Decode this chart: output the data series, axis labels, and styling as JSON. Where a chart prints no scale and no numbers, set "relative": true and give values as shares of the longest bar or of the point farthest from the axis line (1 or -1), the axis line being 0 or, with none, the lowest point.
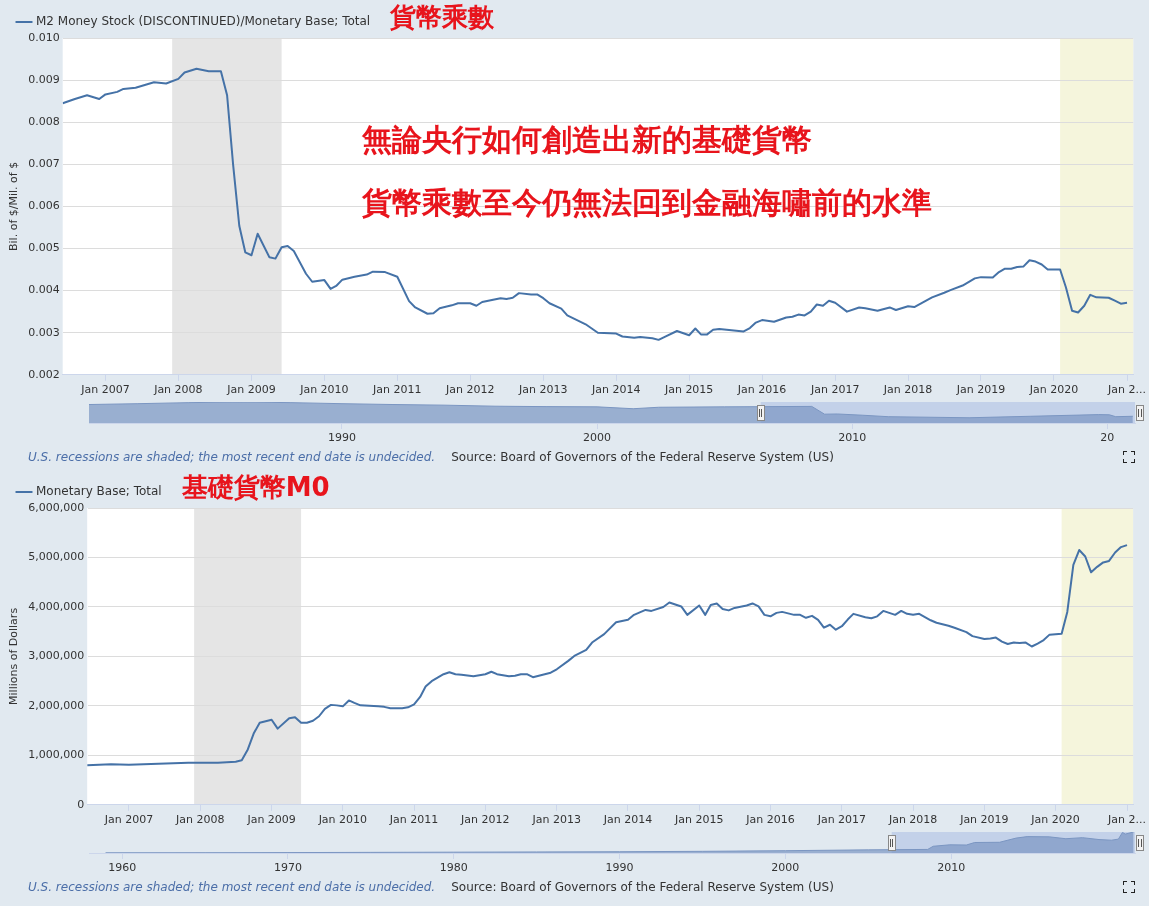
{
  "chart_data": [
    {
      "type": "line",
      "title": "貨幣乘數",
      "ylabel": "Bil. of $/Mil. of $",
      "legend": "top left",
      "grid": "y",
      "xlim": [
        "2006-06",
        "2021-02"
      ],
      "xticks": [
        {
          "value": "2007-01",
          "label": "Jan 2007"
        },
        {
          "value": "2008-01",
          "label": "Jan 2008"
        },
        {
          "value": "2009-01",
          "label": "Jan 2009"
        },
        {
          "value": "2010-01",
          "label": "Jan 2010"
        },
        {
          "value": "2011-01",
          "label": "Jan 2011"
        },
        {
          "value": "2012-01",
          "label": "Jan 2012"
        },
        {
          "value": "2013-01",
          "label": "Jan 2013"
        },
        {
          "value": "2014-01",
          "label": "Jan 2014"
        },
        {
          "value": "2015-01",
          "label": "Jan 2015"
        },
        {
          "value": "2016-01",
          "label": "Jan 2016"
        },
        {
          "value": "2017-01",
          "label": "Jan 2017"
        },
        {
          "value": "2018-01",
          "label": "Jan 2018"
        },
        {
          "value": "2019-01",
          "label": "Jan 2019"
        },
        {
          "value": "2020-01",
          "label": "Jan 2020"
        },
        {
          "value": "2021-01",
          "label": "Jan 2..."
        }
      ],
      "ylim": [
        0.002,
        0.01
      ],
      "yticks": [
        0.002,
        0.003,
        0.004,
        0.005,
        0.006,
        0.007,
        0.008,
        0.009,
        {
          "value": 0.01,
          "label": "0.010"
        }
      ],
      "bands": [
        {
          "axis": "x",
          "from": "2007-12",
          "to": "2009-06",
          "color": "#e5e5e5"
        },
        {
          "axis": "x",
          "from": "2020-02",
          "to": "2021-02",
          "color": "#f5f5dc"
        }
      ],
      "annotations": [
        "無論央行如何創造出新的基礎貨幣",
        "貨幣乘數至今仍無法回到金融海嘯前的水準"
      ],
      "x": [
        "2006-06",
        "2006-08",
        "2006-10",
        "2006-12",
        "2007-01",
        "2007-03",
        "2007-04",
        "2007-06",
        "2007-09",
        "2007-11",
        "2008-01",
        "2008-02",
        "2008-04",
        "2008-06",
        "2008-08",
        "2008-09",
        "2008-10",
        "2008-11",
        "2008-12",
        "2009-01",
        "2009-02",
        "2009-04",
        "2009-05",
        "2009-06",
        "2009-07",
        "2009-08",
        "2009-10",
        "2009-11",
        "2010-01",
        "2010-02",
        "2010-03",
        "2010-04",
        "2010-06",
        "2010-08",
        "2010-09",
        "2010-11",
        "2011-01",
        "2011-03",
        "2011-04",
        "2011-06",
        "2011-07",
        "2011-08",
        "2011-10",
        "2011-11",
        "2012-01",
        "2012-02",
        "2012-03",
        "2012-05",
        "2012-06",
        "2012-07",
        "2012-08",
        "2012-09",
        "2012-11",
        "2012-12",
        "2013-01",
        "2013-02",
        "2013-04",
        "2013-05",
        "2013-08",
        "2013-10",
        "2014-01",
        "2014-02",
        "2014-04",
        "2014-05",
        "2014-07",
        "2014-08",
        "2014-09",
        "2014-11",
        "2015-01",
        "2015-02",
        "2015-03",
        "2015-04",
        "2015-05",
        "2015-06",
        "2015-08",
        "2015-10",
        "2015-11",
        "2015-12",
        "2016-01",
        "2016-03",
        "2016-05",
        "2016-06",
        "2016-07",
        "2016-08",
        "2016-09",
        "2016-10",
        "2016-11",
        "2016-12",
        "2017-01",
        "2017-03",
        "2017-05",
        "2017-06",
        "2017-08",
        "2017-10",
        "2017-11",
        "2018-01",
        "2018-02",
        "2018-05",
        "2018-07",
        "2018-08",
        "2018-10",
        "2018-12",
        "2019-01",
        "2019-03",
        "2019-04",
        "2019-05",
        "2019-06",
        "2019-07",
        "2019-08",
        "2019-09",
        "2019-10",
        "2019-11",
        "2019-12",
        "2020-02",
        "2020-03",
        "2020-04",
        "2020-05",
        "2020-06",
        "2020-07",
        "2020-08",
        "2020-10",
        "2020-11",
        "2020-12",
        "2021-01"
      ],
      "series": [
        {
          "name": "M2 Money Stock (DISCONTINUED)/Monetary Base; Total",
          "color": "#4572a7",
          "values": [
            0.00845,
            0.00855,
            0.00864,
            0.00855,
            0.00866,
            0.00872,
            0.00879,
            0.00882,
            0.00895,
            0.00892,
            0.00903,
            0.00918,
            0.00927,
            0.00921,
            0.00921,
            0.00864,
            0.007,
            0.00554,
            0.00491,
            0.00484,
            0.00535,
            0.00479,
            0.00476,
            0.00503,
            0.00506,
            0.00494,
            0.0044,
            0.00421,
            0.00425,
            0.00404,
            0.00411,
            0.00426,
            0.00433,
            0.00438,
            0.00445,
            0.00444,
            0.00433,
            0.00375,
            0.0036,
            0.00345,
            0.00346,
            0.00358,
            0.00365,
            0.0037,
            0.0037,
            0.00364,
            0.00373,
            0.00379,
            0.00382,
            0.0038,
            0.00383,
            0.00394,
            0.00391,
            0.00391,
            0.00382,
            0.0037,
            0.00357,
            0.00341,
            0.0032,
            0.003,
            0.00298,
            0.00291,
            0.00288,
            0.0029,
            0.00287,
            0.00283,
            0.0029,
            0.00304,
            0.00294,
            0.0031,
            0.00296,
            0.00296,
            0.00307,
            0.00309,
            0.00306,
            0.00303,
            0.00311,
            0.00324,
            0.0033,
            0.00326,
            0.00336,
            0.00338,
            0.00343,
            0.00341,
            0.0035,
            0.00367,
            0.00364,
            0.00376,
            0.00371,
            0.0035,
            0.0036,
            0.00358,
            0.00352,
            0.0036,
            0.00354,
            0.00363,
            0.00361,
            0.00384,
            0.00395,
            0.00401,
            0.00412,
            0.00429,
            0.00432,
            0.00431,
            0.00444,
            0.00452,
            0.00452,
            0.00456,
            0.00457,
            0.00472,
            0.00469,
            0.00462,
            0.0045,
            0.0045,
            0.00408,
            0.00352,
            0.00348,
            0.00364,
            0.0039,
            0.00384,
            0.00383,
            0.00376,
            0.00369,
            0.00371
          ]
        }
      ]
    },
    {
      "type": "area",
      "relative": true,
      "xlim": [
        "1980-02",
        "2021-02"
      ],
      "xticks": [
        {
          "value": "1990-01",
          "label": "1990"
        },
        {
          "value": "2000-01",
          "label": "2000"
        },
        {
          "value": "2010-01",
          "label": "2010"
        },
        {
          "value": "2020-01",
          "label": "20"
        }
      ],
      "bands": [
        {
          "axis": "x",
          "from": "2006-06",
          "to": "2021-02",
          "color": "#c3d1e9"
        }
      ],
      "annotations": [
        "U.S. recessions are shaded; the most recent end date is undecided.",
        "Source: Board of Governors of the Federal Reserve System (US)"
      ],
      "x": [
        "1980-02",
        "1982-01",
        "1984-01",
        "1986-01",
        "1988-01",
        "1990-01",
        "1992-01",
        "1994-01",
        "1996-01",
        "1998-01",
        "2000-01",
        "2001-06",
        "2002-06",
        "2005-01",
        "2008-06",
        "2008-12",
        "2009-06",
        "2010-06",
        "2011-06",
        "2014-08",
        "2017-01",
        "2019-09",
        "2020-02",
        "2020-05",
        "2021-01"
      ],
      "series": [
        {
          "color": "#7b96c2",
          "values": [
            0.88,
            0.92,
            0.97,
            1,
            0.97,
            0.92,
            0.88,
            0.85,
            0.8,
            0.78,
            0.77,
            0.68,
            0.75,
            0.77,
            0.79,
            0.42,
            0.43,
            0.37,
            0.3,
            0.25,
            0.32,
            0.4,
            0.39,
            0.3,
            0.32
          ]
        }
      ]
    },
    {
      "type": "line",
      "title": "基礎貨幣M0",
      "ylabel": "Millions of Dollars",
      "legend": "top left",
      "grid": "y",
      "xlim": [
        "2006-06",
        "2021-02"
      ],
      "xticks": [
        {
          "value": "2007-01",
          "label": "Jan 2007"
        },
        {
          "value": "2008-01",
          "label": "Jan 2008"
        },
        {
          "value": "2009-01",
          "label": "Jan 2009"
        },
        {
          "value": "2010-01",
          "label": "Jan 2010"
        },
        {
          "value": "2011-01",
          "label": "Jan 2011"
        },
        {
          "value": "2012-01",
          "label": "Jan 2012"
        },
        {
          "value": "2013-01",
          "label": "Jan 2013"
        },
        {
          "value": "2014-01",
          "label": "Jan 2014"
        },
        {
          "value": "2015-01",
          "label": "Jan 2015"
        },
        {
          "value": "2016-01",
          "label": "Jan 2016"
        },
        {
          "value": "2017-01",
          "label": "Jan 2017"
        },
        {
          "value": "2018-01",
          "label": "Jan 2018"
        },
        {
          "value": "2019-01",
          "label": "Jan 2019"
        },
        {
          "value": "2020-01",
          "label": "Jan 2020"
        },
        {
          "value": "2021-01",
          "label": "Jan 2..."
        }
      ],
      "ylim": [
        0,
        6000000
      ],
      "yticks": [
        0,
        {
          "value": 1000000,
          "label": "1,000,000"
        },
        {
          "value": 2000000,
          "label": "2,000,000"
        },
        {
          "value": 3000000,
          "label": "3,000,000"
        },
        {
          "value": 4000000,
          "label": "4,000,000"
        },
        {
          "value": 5000000,
          "label": "5,000,000"
        },
        {
          "value": 6000000,
          "label": "6,000,000"
        }
      ],
      "bands": [
        {
          "axis": "x",
          "from": "2007-12",
          "to": "2009-06",
          "color": "#e5e5e5"
        },
        {
          "axis": "x",
          "from": "2020-02",
          "to": "2021-02",
          "color": "#f5f5dc"
        }
      ],
      "x": [
        "2006-06",
        "2006-10",
        "2007-01",
        "2007-06",
        "2007-11",
        "2008-04",
        "2008-07",
        "2008-08",
        "2008-09",
        "2008-10",
        "2008-11",
        "2009-01",
        "2009-02",
        "2009-04",
        "2009-05",
        "2009-06",
        "2009-07",
        "2009-08",
        "2009-09",
        "2009-10",
        "2009-11",
        "2009-12",
        "2010-01",
        "2010-02",
        "2010-03",
        "2010-04",
        "2010-07",
        "2010-08",
        "2010-09",
        "2010-11",
        "2010-12",
        "2011-01",
        "2011-02",
        "2011-03",
        "2011-04",
        "2011-06",
        "2011-07",
        "2011-08",
        "2011-09",
        "2011-11",
        "2012-01",
        "2012-02",
        "2012-03",
        "2012-05",
        "2012-06",
        "2012-07",
        "2012-08",
        "2012-09",
        "2012-10",
        "2012-12",
        "2013-01",
        "2013-03",
        "2013-04",
        "2013-06",
        "2013-07",
        "2013-09",
        "2013-11",
        "2014-01",
        "2014-02",
        "2014-04",
        "2014-05",
        "2014-07",
        "2014-08",
        "2014-10",
        "2014-11",
        "2015-01",
        "2015-02",
        "2015-03",
        "2015-04",
        "2015-05",
        "2015-06",
        "2015-07",
        "2015-09",
        "2015-10",
        "2015-11",
        "2015-12",
        "2016-01",
        "2016-02",
        "2016-03",
        "2016-05",
        "2016-06",
        "2016-07",
        "2016-08",
        "2016-09",
        "2016-10",
        "2016-11",
        "2016-12",
        "2017-01",
        "2017-02",
        "2017-03",
        "2017-05",
        "2017-06",
        "2017-07",
        "2017-08",
        "2017-10",
        "2017-11",
        "2017-12",
        "2018-01",
        "2018-02",
        "2018-04",
        "2018-05",
        "2018-07",
        "2018-08",
        "2018-10",
        "2018-11",
        "2019-01",
        "2019-02",
        "2019-03",
        "2019-04",
        "2019-05",
        "2019-06",
        "2019-07",
        "2019-08",
        "2019-09",
        "2019-10",
        "2019-11",
        "2019-12",
        "2020-02",
        "2020-03",
        "2020-04",
        "2020-05",
        "2020-06",
        "2020-07",
        "2020-08",
        "2020-09",
        "2020-10",
        "2020-11",
        "2020-12",
        "2021-01"
      ],
      "series": [
        {
          "name": "Monetary Base; Total",
          "color": "#4572a7",
          "values": [
            800000,
            820000,
            810000,
            830000,
            850000,
            850000,
            870000,
            900000,
            1120000,
            1440000,
            1660000,
            1720000,
            1540000,
            1750000,
            1770000,
            1660000,
            1660000,
            1700000,
            1790000,
            1940000,
            2020000,
            2010000,
            1990000,
            2110000,
            2060000,
            2010000,
            1990000,
            1980000,
            1950000,
            1950000,
            1970000,
            2030000,
            2180000,
            2390000,
            2500000,
            2640000,
            2680000,
            2640000,
            2630000,
            2600000,
            2640000,
            2690000,
            2640000,
            2600000,
            2610000,
            2640000,
            2640000,
            2580000,
            2610000,
            2670000,
            2740000,
            2910000,
            3010000,
            3130000,
            3280000,
            3450000,
            3690000,
            3740000,
            3840000,
            3940000,
            3920000,
            4000000,
            4090000,
            4010000,
            3840000,
            4030000,
            3840000,
            4040000,
            4070000,
            3960000,
            3930000,
            3980000,
            4030000,
            4070000,
            4010000,
            3840000,
            3810000,
            3880000,
            3900000,
            3840000,
            3840000,
            3780000,
            3820000,
            3740000,
            3580000,
            3640000,
            3540000,
            3610000,
            3750000,
            3860000,
            3790000,
            3770000,
            3810000,
            3920000,
            3840000,
            3920000,
            3860000,
            3840000,
            3860000,
            3730000,
            3680000,
            3620000,
            3580000,
            3490000,
            3410000,
            3350000,
            3360000,
            3380000,
            3300000,
            3250000,
            3280000,
            3270000,
            3280000,
            3200000,
            3260000,
            3330000,
            3440000,
            3460000,
            3900000,
            4850000,
            5150000,
            5020000,
            4700000,
            4810000,
            4900000,
            4930000,
            5100000,
            5210000,
            5250000
          ]
        }
      ]
    },
    {
      "type": "area",
      "relative": true,
      "xlim": [
        "1958-01",
        "2021-02"
      ],
      "xticks": [
        {
          "value": "1960-01",
          "label": "1960"
        },
        {
          "value": "1970-01",
          "label": "1970"
        },
        {
          "value": "1980-01",
          "label": "1980"
        },
        {
          "value": "1990-01",
          "label": "1990"
        },
        {
          "value": "2000-01",
          "label": "2000"
        },
        {
          "value": "2010-01",
          "label": "2010"
        }
      ],
      "bands": [
        {
          "axis": "x",
          "from": "2006-06",
          "to": "2021-02",
          "color": "#c3d1e9"
        }
      ],
      "annotations": [
        "U.S. recessions are shaded; the most recent end date is undecided.",
        "Source: Board of Governors of the Federal Reserve System (US)"
      ],
      "x": [
        "1959-01",
        "1965-01",
        "1970-01",
        "1975-01",
        "1980-01",
        "1985-01",
        "1990-01",
        "1995-01",
        "2000-01",
        "2005-01",
        "2008-08",
        "2008-12",
        "2009-12",
        "2010-12",
        "2011-06",
        "2012-12",
        "2013-12",
        "2014-08",
        "2015-12",
        "2016-12",
        "2017-12",
        "2018-12",
        "2019-09",
        "2020-02",
        "2020-05",
        "2020-07",
        "2021-01"
      ],
      "series": [
        {
          "color": "#7b96c2",
          "values": [
            0.01,
            0.014,
            0.02,
            0.03,
            0.04,
            0.05,
            0.06,
            0.08,
            0.11,
            0.15,
            0.17,
            0.32,
            0.39,
            0.38,
            0.5,
            0.51,
            0.71,
            0.78,
            0.77,
            0.68,
            0.73,
            0.64,
            0.61,
            0.66,
            0.98,
            0.9,
            1
          ]
        }
      ]
    }
  ]
}
